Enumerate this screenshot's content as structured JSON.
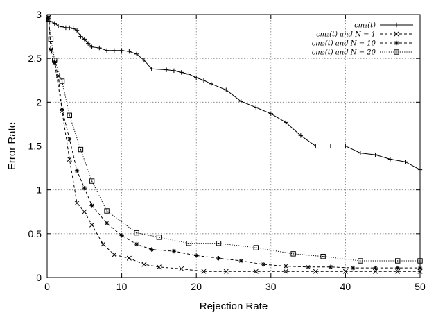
{
  "chart_data": {
    "type": "line",
    "xlabel": "Rejection Rate",
    "ylabel": "Error Rate",
    "xlim": [
      0,
      50
    ],
    "ylim": [
      0,
      3
    ],
    "xticks": [
      0,
      10,
      20,
      30,
      40,
      50
    ],
    "yticks": [
      0,
      0.5,
      1,
      1.5,
      2,
      2.5,
      3
    ],
    "xtick_labels": [
      "0",
      "10",
      "20",
      "30",
      "40",
      "50"
    ],
    "ytick_labels": [
      "0",
      "0.5",
      "1",
      "1.5",
      "2",
      "2.5",
      "3"
    ],
    "grid": true,
    "legend_position": "top-right",
    "series": [
      {
        "name": "cm₁(t)",
        "marker": "plus",
        "line": "solid",
        "x": [
          0.1,
          0.3,
          0.5,
          1.0,
          1.5,
          2.0,
          2.5,
          3.0,
          3.5,
          4.0,
          4.5,
          5.0,
          5.5,
          6.0,
          7.0,
          8.0,
          9.0,
          10.0,
          11.0,
          12.0,
          13.0,
          14.0,
          16.0,
          17.0,
          18.0,
          19.0,
          20.0,
          21.0,
          22.0,
          24.0,
          26.0,
          28.0,
          30.0,
          32.0,
          34.0,
          36.0,
          38.0,
          40.0,
          42.0,
          44.0,
          46.0,
          48.0,
          50.0
        ],
        "y": [
          2.95,
          2.92,
          2.92,
          2.9,
          2.87,
          2.86,
          2.85,
          2.85,
          2.84,
          2.82,
          2.75,
          2.72,
          2.67,
          2.63,
          2.62,
          2.59,
          2.59,
          2.59,
          2.58,
          2.55,
          2.48,
          2.38,
          2.37,
          2.36,
          2.34,
          2.32,
          2.28,
          2.25,
          2.21,
          2.14,
          2.01,
          1.94,
          1.87,
          1.77,
          1.62,
          1.5,
          1.5,
          1.5,
          1.42,
          1.4,
          1.35,
          1.32,
          1.23
        ]
      },
      {
        "name": "cm₂(t) and N = 1",
        "marker": "x",
        "line": "dashed",
        "x": [
          0.2,
          0.5,
          1.0,
          1.5,
          2.0,
          3.0,
          4.0,
          5.0,
          6.0,
          7.5,
          9.0,
          11.0,
          13.0,
          15.0,
          18.0,
          21.0,
          24.0,
          28.0,
          32.0,
          36.0,
          40.0,
          44.0,
          47.0,
          50.0
        ],
        "y": [
          2.97,
          2.6,
          2.45,
          2.3,
          1.9,
          1.35,
          0.85,
          0.75,
          0.6,
          0.38,
          0.26,
          0.22,
          0.15,
          0.12,
          0.1,
          0.07,
          0.07,
          0.07,
          0.07,
          0.07,
          0.07,
          0.07,
          0.07,
          0.07
        ]
      },
      {
        "name": "cm₂(t) and N = 10",
        "marker": "asterisk",
        "line": "dashed",
        "x": [
          0.2,
          0.5,
          1.0,
          2.0,
          3.0,
          4.0,
          5.0,
          6.0,
          8.0,
          10.0,
          12.0,
          14.0,
          17.0,
          20.0,
          23.0,
          26.0,
          29.0,
          32.0,
          35.0,
          38.0,
          41.0,
          44.0,
          47.0,
          50.0
        ],
        "y": [
          2.97,
          2.6,
          2.45,
          1.92,
          1.58,
          1.22,
          1.02,
          0.82,
          0.62,
          0.48,
          0.38,
          0.32,
          0.3,
          0.25,
          0.22,
          0.19,
          0.15,
          0.13,
          0.12,
          0.12,
          0.11,
          0.11,
          0.11,
          0.11
        ]
      },
      {
        "name": "cm₂(t) and N = 20",
        "marker": "square",
        "line": "dotted",
        "x": [
          0.2,
          0.5,
          1.0,
          2.0,
          3.0,
          4.5,
          6.0,
          8.0,
          12.0,
          15.0,
          19.0,
          23.0,
          28.0,
          33.0,
          37.0,
          42.0,
          47.0,
          50.0
        ],
        "y": [
          2.95,
          2.72,
          2.48,
          2.24,
          1.85,
          1.46,
          1.1,
          0.76,
          0.51,
          0.46,
          0.39,
          0.39,
          0.34,
          0.27,
          0.24,
          0.19,
          0.19,
          0.19
        ]
      }
    ]
  }
}
